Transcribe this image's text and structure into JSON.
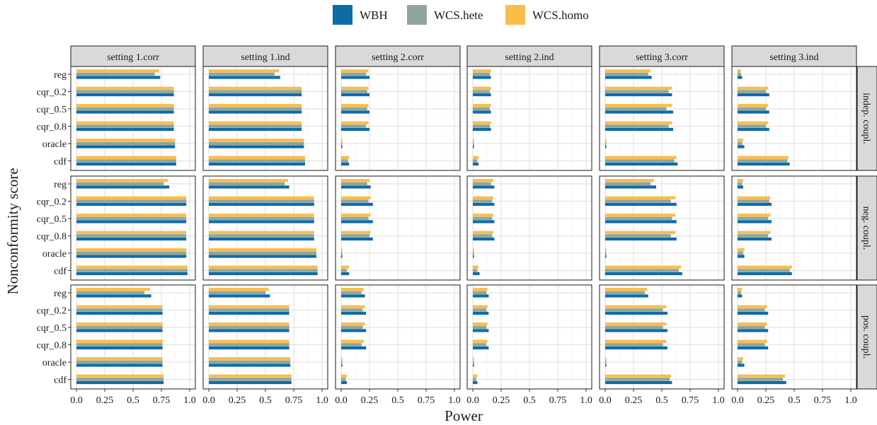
{
  "chart_data": {
    "type": "bar",
    "orientation": "horizontal",
    "facet_grid": true,
    "xlabel": "Power",
    "ylabel": "Nonconformity score",
    "xlim": [
      0,
      1
    ],
    "xticks": [
      "0.0",
      "0.25",
      "0.5",
      "0.75",
      "1.0"
    ],
    "grid": true,
    "legend": {
      "position": "top",
      "items": [
        {
          "name": "WBH",
          "color": "#0F6BA6"
        },
        {
          "name": "WCS.hete",
          "color": "#8FA69A"
        },
        {
          "name": "WCS.homo",
          "color": "#F9BD4C"
        }
      ]
    },
    "categories": [
      "reg",
      "cqr_0.2",
      "cqr_0.5",
      "cqr_0.8",
      "oracle",
      "cdf"
    ],
    "columns": [
      "setting 1.corr",
      "setting 1.ind",
      "setting 2.corr",
      "setting 2.ind",
      "setting 3.corr",
      "setting 3.ind"
    ],
    "rows": [
      "indep. coupl.",
      "neg. coupl.",
      "pos. coupl."
    ],
    "panels": [
      [
        {
          "WBH": [
            0.74,
            0.86,
            0.86,
            0.86,
            0.87,
            0.88
          ],
          "WCS.hete": [
            0.69,
            0.86,
            0.86,
            0.86,
            0.87,
            0.88
          ],
          "WCS.homo": [
            0.73,
            0.86,
            0.86,
            0.86,
            0.87,
            0.88
          ]
        },
        {
          "WBH": [
            0.63,
            0.82,
            0.82,
            0.82,
            0.84,
            0.85
          ],
          "WCS.hete": [
            0.58,
            0.82,
            0.82,
            0.82,
            0.84,
            0.85
          ],
          "WCS.homo": [
            0.62,
            0.82,
            0.82,
            0.82,
            0.84,
            0.85
          ]
        },
        {
          "WBH": [
            0.25,
            0.25,
            0.25,
            0.25,
            0.01,
            0.07
          ],
          "WCS.hete": [
            0.22,
            0.23,
            0.23,
            0.22,
            0.01,
            0.06
          ],
          "WCS.homo": [
            0.24,
            0.24,
            0.24,
            0.24,
            0.01,
            0.07
          ]
        },
        {
          "WBH": [
            0.16,
            0.16,
            0.16,
            0.16,
            0.01,
            0.05
          ],
          "WCS.hete": [
            0.15,
            0.15,
            0.15,
            0.15,
            0.01,
            0.04
          ],
          "WCS.homo": [
            0.16,
            0.16,
            0.16,
            0.16,
            0.01,
            0.05
          ]
        },
        {
          "WBH": [
            0.41,
            0.59,
            0.6,
            0.6,
            0.01,
            0.64
          ],
          "WCS.hete": [
            0.38,
            0.56,
            0.54,
            0.56,
            0.01,
            0.61
          ],
          "WCS.homo": [
            0.4,
            0.59,
            0.59,
            0.59,
            0.01,
            0.63
          ]
        },
        {
          "WBH": [
            0.04,
            0.28,
            0.28,
            0.28,
            0.06,
            0.46
          ],
          "WCS.hete": [
            0.03,
            0.25,
            0.25,
            0.25,
            0.04,
            0.44
          ],
          "WCS.homo": [
            0.03,
            0.27,
            0.27,
            0.27,
            0.05,
            0.45
          ]
        }
      ],
      [
        {
          "WBH": [
            0.82,
            0.97,
            0.97,
            0.97,
            0.97,
            0.98
          ],
          "WCS.hete": [
            0.77,
            0.97,
            0.97,
            0.97,
            0.97,
            0.98
          ],
          "WCS.homo": [
            0.81,
            0.97,
            0.97,
            0.97,
            0.97,
            0.98
          ]
        },
        {
          "WBH": [
            0.71,
            0.93,
            0.93,
            0.93,
            0.95,
            0.96
          ],
          "WCS.hete": [
            0.67,
            0.93,
            0.93,
            0.93,
            0.95,
            0.96
          ],
          "WCS.homo": [
            0.7,
            0.93,
            0.93,
            0.93,
            0.95,
            0.96
          ]
        },
        {
          "WBH": [
            0.26,
            0.28,
            0.28,
            0.28,
            0.01,
            0.07
          ],
          "WCS.hete": [
            0.23,
            0.24,
            0.24,
            0.25,
            0.01,
            0.05
          ],
          "WCS.homo": [
            0.25,
            0.26,
            0.26,
            0.26,
            0.01,
            0.07
          ]
        },
        {
          "WBH": [
            0.19,
            0.19,
            0.19,
            0.19,
            0.01,
            0.06
          ],
          "WCS.hete": [
            0.16,
            0.17,
            0.17,
            0.17,
            0.01,
            0.04
          ],
          "WCS.homo": [
            0.18,
            0.18,
            0.18,
            0.18,
            0.01,
            0.05
          ]
        },
        {
          "WBH": [
            0.45,
            0.63,
            0.63,
            0.63,
            0.01,
            0.68
          ],
          "WCS.hete": [
            0.4,
            0.58,
            0.59,
            0.58,
            0.01,
            0.65
          ],
          "WCS.homo": [
            0.43,
            0.62,
            0.62,
            0.62,
            0.01,
            0.67
          ]
        },
        {
          "WBH": [
            0.05,
            0.3,
            0.3,
            0.3,
            0.06,
            0.48
          ],
          "WCS.hete": [
            0.04,
            0.28,
            0.27,
            0.27,
            0.05,
            0.46
          ],
          "WCS.homo": [
            0.05,
            0.29,
            0.29,
            0.29,
            0.06,
            0.48
          ]
        }
      ],
      [
        {
          "WBH": [
            0.66,
            0.76,
            0.76,
            0.76,
            0.76,
            0.77
          ],
          "WCS.hete": [
            0.6,
            0.76,
            0.76,
            0.76,
            0.76,
            0.77
          ],
          "WCS.homo": [
            0.65,
            0.76,
            0.76,
            0.76,
            0.76,
            0.77
          ]
        },
        {
          "WBH": [
            0.54,
            0.71,
            0.71,
            0.71,
            0.72,
            0.73
          ],
          "WCS.hete": [
            0.5,
            0.71,
            0.71,
            0.71,
            0.72,
            0.73
          ],
          "WCS.homo": [
            0.53,
            0.71,
            0.71,
            0.71,
            0.72,
            0.73
          ]
        },
        {
          "WBH": [
            0.21,
            0.22,
            0.22,
            0.22,
            0.01,
            0.05
          ],
          "WCS.hete": [
            0.18,
            0.19,
            0.19,
            0.18,
            0.01,
            0.04
          ],
          "WCS.homo": [
            0.2,
            0.21,
            0.21,
            0.2,
            0.01,
            0.05
          ]
        },
        {
          "WBH": [
            0.14,
            0.14,
            0.14,
            0.14,
            0.01,
            0.04
          ],
          "WCS.hete": [
            0.12,
            0.12,
            0.12,
            0.12,
            0.01,
            0.03
          ],
          "WCS.homo": [
            0.13,
            0.13,
            0.13,
            0.13,
            0.01,
            0.04
          ]
        },
        {
          "WBH": [
            0.38,
            0.55,
            0.55,
            0.55,
            0.01,
            0.59
          ],
          "WCS.hete": [
            0.35,
            0.51,
            0.51,
            0.51,
            0.01,
            0.57
          ],
          "WCS.homo": [
            0.37,
            0.54,
            0.54,
            0.54,
            0.01,
            0.58
          ]
        },
        {
          "WBH": [
            0.04,
            0.27,
            0.27,
            0.27,
            0.06,
            0.43
          ],
          "WCS.hete": [
            0.03,
            0.24,
            0.24,
            0.24,
            0.04,
            0.4
          ],
          "WCS.homo": [
            0.04,
            0.26,
            0.26,
            0.26,
            0.05,
            0.42
          ]
        }
      ]
    ]
  }
}
